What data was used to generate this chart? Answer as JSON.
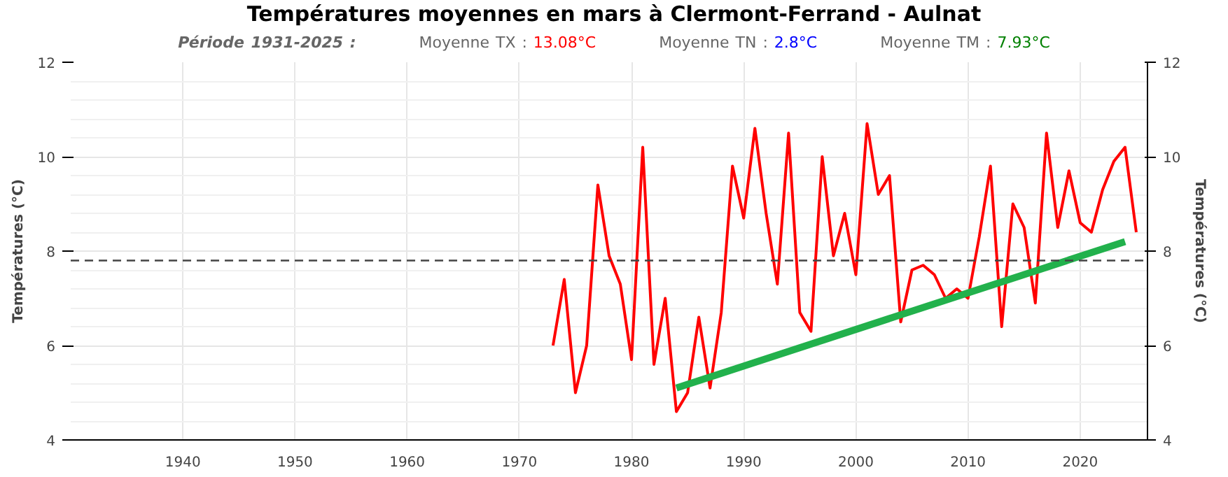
{
  "chart_data": {
    "type": "line",
    "title": "Températures moyennes en mars à Clermont-Ferrand - Aulnat",
    "subtitle": "Période 1931-2025 :",
    "annotations": [
      "Moyenne TX : 13.08°C",
      "Moyenne TN : 2.8°C",
      "Moyenne TM : 7.93°C"
    ],
    "ylabel": "Températures (°C)",
    "y2label": "Températures (°C)",
    "xlim": [
      1930,
      2026
    ],
    "xticks": [
      1940,
      1950,
      1960,
      1970,
      1980,
      1990,
      2000,
      2010,
      2020
    ],
    "ylim": [
      4,
      12
    ],
    "yticks": [
      4,
      6,
      8,
      10,
      12
    ],
    "y2lim": [
      4,
      12
    ],
    "y2ticks": [
      4,
      6,
      8,
      10,
      12
    ],
    "grid": true,
    "ref_lines": [
      {
        "axis": "y",
        "value": 7.8,
        "color": "#444444",
        "line_style": "dashed"
      }
    ],
    "series": [
      {
        "color": "#ff0000",
        "x": [
          1973,
          1974,
          1975,
          1976,
          1977,
          1978,
          1979,
          1980,
          1981,
          1982,
          1983,
          1984,
          1985,
          1986,
          1987,
          1988,
          1989,
          1990,
          1991,
          1992,
          1993,
          1994,
          1995,
          1996,
          1997,
          1998,
          1999,
          2000,
          2001,
          2002,
          2003,
          2004,
          2005,
          2006,
          2007,
          2008,
          2009,
          2010,
          2011,
          2012,
          2013,
          2014,
          2015,
          2016,
          2017,
          2018,
          2019,
          2020,
          2021,
          2022,
          2023,
          2024,
          2025
        ],
        "values": [
          6.0,
          7.4,
          5.0,
          6.0,
          9.4,
          7.9,
          7.3,
          5.7,
          10.2,
          5.6,
          7.0,
          4.6,
          5.0,
          6.6,
          5.1,
          6.7,
          9.8,
          8.7,
          10.6,
          8.8,
          7.3,
          10.5,
          6.7,
          6.3,
          10.0,
          7.9,
          8.8,
          7.5,
          10.7,
          9.2,
          9.6,
          6.5,
          7.6,
          7.7,
          7.5,
          7.0,
          7.2,
          7.0,
          8.3,
          9.8,
          6.4,
          9.0,
          8.5,
          6.9,
          10.5,
          8.5,
          9.7,
          8.6,
          8.4,
          9.3,
          9.9,
          10.2,
          8.4
        ]
      },
      {
        "color": "#22b14c",
        "x": [
          1984,
          2024
        ],
        "values": [
          5.1,
          8.2
        ]
      }
    ]
  }
}
